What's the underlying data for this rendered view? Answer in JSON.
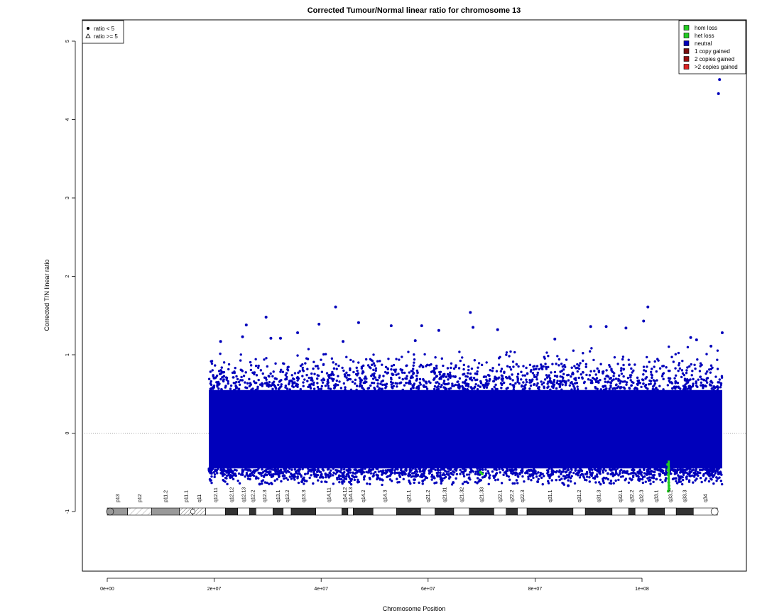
{
  "chart_data": {
    "type": "scatter",
    "title": "Corrected Tumour/Normal linear ratio for chromosome  13",
    "xlabel": "Chromosome Position",
    "ylabel": "Corrected T/N linear ratio",
    "xlim": [
      -4500000,
      120000000
    ],
    "ylim": [
      -1.8,
      5.3
    ],
    "x_ticks": [
      0,
      20000000,
      40000000,
      60000000,
      80000000,
      100000000
    ],
    "x_tick_labels": [
      "0e+00",
      "2e+07",
      "4e+07",
      "6e+07",
      "8e+07",
      "1e+08"
    ],
    "y_ticks": [
      -1,
      0,
      1,
      2,
      3,
      4,
      5
    ],
    "y_tick_labels": [
      "-1",
      "0",
      "1",
      "2",
      "3",
      "4",
      "5"
    ],
    "reference_line": {
      "y": 0,
      "style": "dotted"
    },
    "data_range": {
      "x_start": 19000000,
      "x_end": 115000000,
      "typical_min": -0.45,
      "typical_max": 0.55
    },
    "legend_shape": {
      "position": "top-left",
      "entries": [
        {
          "label": "ratio < 5",
          "symbol": "filled-circle"
        },
        {
          "label": "ratio >= 5",
          "symbol": "open-triangle"
        }
      ]
    },
    "legend_status": {
      "position": "top-right",
      "entries": [
        {
          "label": "hom loss",
          "color": "#22cc22"
        },
        {
          "label": "het loss",
          "color": "#22cc22"
        },
        {
          "label": "neutral",
          "color": "#0000bb"
        },
        {
          "label": "1 copy gained",
          "color": "#7a1010"
        },
        {
          "label": "2 copies gained",
          "color": "#9a1010"
        },
        {
          "label": ">2 copies gained",
          "color": "#dd2222"
        }
      ]
    },
    "series": [
      {
        "name": "neutral",
        "color": "#0000bb",
        "outliers": [
          {
            "x": 114500000,
            "y": 4.51
          },
          {
            "x": 114300000,
            "y": 4.33
          },
          {
            "x": 42700000,
            "y": 1.61
          },
          {
            "x": 101100000,
            "y": 1.61
          },
          {
            "x": 67900000,
            "y": 1.54
          },
          {
            "x": 29700000,
            "y": 1.48
          },
          {
            "x": 100300000,
            "y": 1.43
          },
          {
            "x": 39600000,
            "y": 1.39
          },
          {
            "x": 26000000,
            "y": 1.38
          },
          {
            "x": 53100000,
            "y": 1.37
          },
          {
            "x": 58800000,
            "y": 1.37
          },
          {
            "x": 47000000,
            "y": 1.41
          },
          {
            "x": 68400000,
            "y": 1.35
          },
          {
            "x": 90400000,
            "y": 1.36
          },
          {
            "x": 93300000,
            "y": 1.36
          },
          {
            "x": 97000000,
            "y": 1.34
          },
          {
            "x": 73000000,
            "y": 1.32
          },
          {
            "x": 62000000,
            "y": 1.31
          },
          {
            "x": 115000000,
            "y": 1.28
          },
          {
            "x": 35600000,
            "y": 1.28
          },
          {
            "x": 25300000,
            "y": 1.23
          },
          {
            "x": 109100000,
            "y": 1.22
          },
          {
            "x": 30600000,
            "y": 1.21
          },
          {
            "x": 32400000,
            "y": 1.21
          },
          {
            "x": 83700000,
            "y": 1.2
          },
          {
            "x": 110200000,
            "y": 1.19
          },
          {
            "x": 57600000,
            "y": 1.18
          },
          {
            "x": 21200000,
            "y": 1.17
          },
          {
            "x": 44100000,
            "y": 1.17
          },
          {
            "x": 112900000,
            "y": 1.11
          },
          {
            "x": 36400000,
            "y": -0.62
          },
          {
            "x": 28500000,
            "y": -0.65
          },
          {
            "x": 86200000,
            "y": -0.67
          },
          {
            "x": 64700000,
            "y": -0.63
          },
          {
            "x": 59000000,
            "y": -0.61
          },
          {
            "x": 101500000,
            "y": -0.6
          },
          {
            "x": 80500000,
            "y": -0.62
          },
          {
            "x": 50600000,
            "y": -0.57
          }
        ]
      },
      {
        "name": "het loss",
        "color": "#22cc22",
        "points": [
          {
            "x": 69800000,
            "y": -0.5
          },
          {
            "x": 70100000,
            "y": -0.52
          },
          {
            "x": 104800000,
            "y": -0.4
          },
          {
            "x": 104850000,
            "y": -0.47
          },
          {
            "x": 104900000,
            "y": -0.53
          },
          {
            "x": 104950000,
            "y": -0.58
          },
          {
            "x": 105000000,
            "y": -0.63
          },
          {
            "x": 105050000,
            "y": -0.67
          },
          {
            "x": 105100000,
            "y": -0.71
          },
          {
            "x": 104900000,
            "y": -0.74
          },
          {
            "x": 105000000,
            "y": -0.45
          }
        ]
      }
    ],
    "ideogram": {
      "y": -1,
      "bands": [
        {
          "name": "p13",
          "start": 0,
          "end": 3800000,
          "stain": "gpos50"
        },
        {
          "name": "p12",
          "start": 3800000,
          "end": 8300000,
          "stain": "stalk"
        },
        {
          "name": "p11.2",
          "start": 8300000,
          "end": 13500000,
          "stain": "gvar"
        },
        {
          "name": "p11.1",
          "start": 13500000,
          "end": 16000000,
          "stain": "acen"
        },
        {
          "name": "q11",
          "start": 16000000,
          "end": 18400000,
          "stain": "gvar"
        },
        {
          "name": "q12.11",
          "start": 18400000,
          "end": 22100000,
          "stain": "gneg"
        },
        {
          "name": "q12.12",
          "start": 22100000,
          "end": 24400000,
          "stain": "gpos100"
        },
        {
          "name": "q12.13",
          "start": 24400000,
          "end": 26600000,
          "stain": "gneg"
        },
        {
          "name": "q12.2",
          "start": 26600000,
          "end": 27800000,
          "stain": "gpos100"
        },
        {
          "name": "q12.3",
          "start": 27800000,
          "end": 31000000,
          "stain": "gneg"
        },
        {
          "name": "q13.1",
          "start": 31000000,
          "end": 32900000,
          "stain": "gpos100"
        },
        {
          "name": "q13.2",
          "start": 32900000,
          "end": 34400000,
          "stain": "gneg"
        },
        {
          "name": "q13.3",
          "start": 34400000,
          "end": 39000000,
          "stain": "gpos100"
        },
        {
          "name": "q14.11",
          "start": 39000000,
          "end": 43900000,
          "stain": "gneg"
        },
        {
          "name": "q14.12",
          "start": 43900000,
          "end": 45000000,
          "stain": "gpos100"
        },
        {
          "name": "q14.13",
          "start": 45000000,
          "end": 46000000,
          "stain": "gneg"
        },
        {
          "name": "q14.2",
          "start": 46000000,
          "end": 49700000,
          "stain": "gpos100"
        },
        {
          "name": "q14.3",
          "start": 49700000,
          "end": 54100000,
          "stain": "gneg"
        },
        {
          "name": "q21.1",
          "start": 54100000,
          "end": 58600000,
          "stain": "gpos100"
        },
        {
          "name": "q21.2",
          "start": 58600000,
          "end": 61300000,
          "stain": "gneg"
        },
        {
          "name": "q21.31",
          "start": 61300000,
          "end": 64800000,
          "stain": "gpos100"
        },
        {
          "name": "q21.32",
          "start": 64800000,
          "end": 67700000,
          "stain": "gneg"
        },
        {
          "name": "q21.33",
          "start": 67700000,
          "end": 72300000,
          "stain": "gpos100"
        },
        {
          "name": "q22.1",
          "start": 72300000,
          "end": 74600000,
          "stain": "gneg"
        },
        {
          "name": "q22.2",
          "start": 74600000,
          "end": 76700000,
          "stain": "gpos100"
        },
        {
          "name": "q22.3",
          "start": 76700000,
          "end": 78500000,
          "stain": "gneg"
        },
        {
          "name": "q31.1",
          "start": 78500000,
          "end": 87100000,
          "stain": "gpos100"
        },
        {
          "name": "q31.2",
          "start": 87100000,
          "end": 89400000,
          "stain": "gneg"
        },
        {
          "name": "q31.3",
          "start": 89400000,
          "end": 94400000,
          "stain": "gpos100"
        },
        {
          "name": "q32.1",
          "start": 94400000,
          "end": 97500000,
          "stain": "gneg"
        },
        {
          "name": "q32.2",
          "start": 97500000,
          "end": 98700000,
          "stain": "gpos100"
        },
        {
          "name": "q32.3",
          "start": 98700000,
          "end": 101100000,
          "stain": "gneg"
        },
        {
          "name": "q33.1",
          "start": 101100000,
          "end": 104200000,
          "stain": "gpos100"
        },
        {
          "name": "q33.2",
          "start": 104200000,
          "end": 106400000,
          "stain": "gneg"
        },
        {
          "name": "q33.3",
          "start": 106400000,
          "end": 109600000,
          "stain": "gpos100"
        },
        {
          "name": "q34",
          "start": 109600000,
          "end": 114100000,
          "stain": "gneg"
        }
      ]
    }
  }
}
